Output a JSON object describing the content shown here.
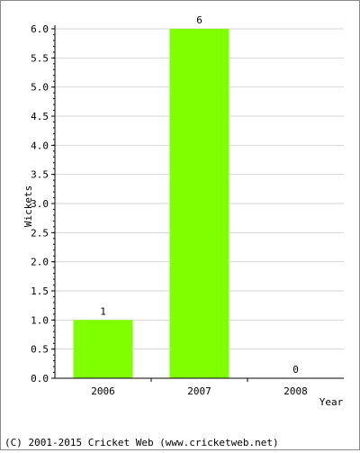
{
  "chart_data": {
    "type": "bar",
    "categories": [
      "2006",
      "2007",
      "2008"
    ],
    "values": [
      1,
      6,
      0
    ],
    "data_labels": [
      "1",
      "6",
      "0"
    ],
    "xlabel": "Year",
    "ylabel": "Wickets",
    "ylim": [
      0,
      6
    ],
    "yticks": [
      "0.0",
      "0.5",
      "1.0",
      "1.5",
      "2.0",
      "2.5",
      "3.0",
      "3.5",
      "4.0",
      "4.5",
      "5.0",
      "5.5",
      "6.0"
    ],
    "grid": true,
    "legend": "none",
    "bar_color": "#80ff00",
    "grid_color": "#d6d6d6"
  },
  "footer": {
    "copyright": "(C) 2001-2015 Cricket Web (www.cricketweb.net)"
  }
}
